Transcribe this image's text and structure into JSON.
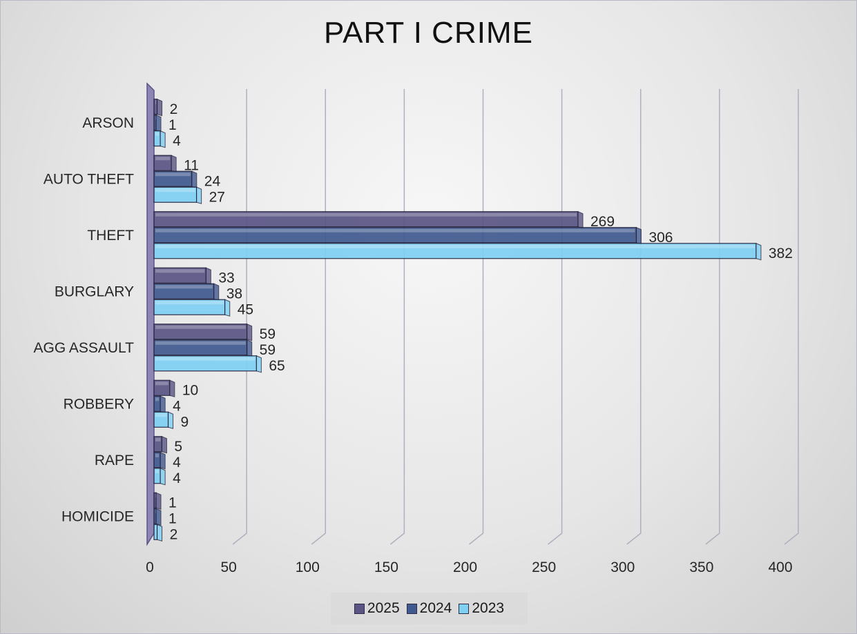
{
  "chart_data": {
    "type": "bar",
    "orientation": "horizontal",
    "title": "PART I CRIME",
    "categories": [
      "ARSON",
      "AUTO THEFT",
      "THEFT",
      "BURGLARY",
      "AGG ASSAULT",
      "ROBBERY",
      "RAPE",
      "HOMICIDE"
    ],
    "series": [
      {
        "name": "2025",
        "color": "#5a5585",
        "values": [
          2,
          11,
          269,
          33,
          59,
          10,
          5,
          1
        ]
      },
      {
        "name": "2024",
        "color": "#40598f",
        "values": [
          1,
          24,
          306,
          38,
          59,
          4,
          4,
          1
        ]
      },
      {
        "name": "2023",
        "color": "#7fd0f3",
        "values": [
          4,
          27,
          382,
          45,
          65,
          9,
          4,
          2
        ]
      }
    ],
    "xlim": [
      0,
      400
    ],
    "xticks": [
      0,
      50,
      100,
      150,
      200,
      250,
      300,
      350,
      400
    ],
    "xlabel": "",
    "ylabel": "",
    "grid": true,
    "legend_position": "bottom",
    "data_labels": true
  }
}
